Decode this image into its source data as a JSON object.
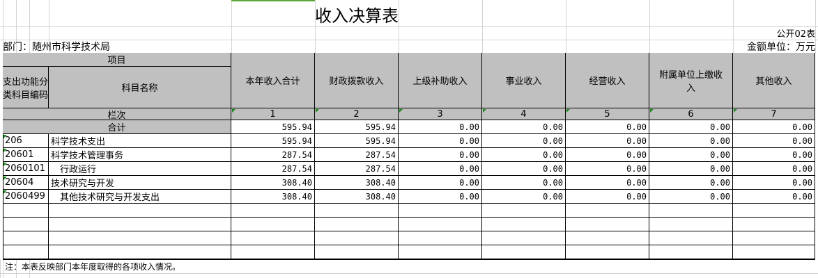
{
  "title": "收入决算表",
  "form_no": "公开02表",
  "department": "部门：随州市科学技术局",
  "unit": "金额单位：万元",
  "header": {
    "item": "项目",
    "code": "支出功能分类科目编码",
    "name": "科目名称",
    "row_label": "栏次",
    "total_label": "合计",
    "columns": [
      "本年收入合计",
      "财政拨款收入",
      "上级补助收入",
      "事业收入",
      "经营收入",
      "附属单位上缴收入",
      "其他收入"
    ],
    "column_numbers": [
      "1",
      "2",
      "3",
      "4",
      "5",
      "6",
      "7"
    ]
  },
  "total": [
    "595.94",
    "595.94",
    "0.00",
    "0.00",
    "0.00",
    "0.00",
    "0.00"
  ],
  "rows": [
    {
      "code": "206",
      "name": "科学技术支出",
      "values": [
        "595.94",
        "595.94",
        "0.00",
        "0.00",
        "0.00",
        "0.00",
        "0.00"
      ]
    },
    {
      "code": "20601",
      "name": "科学技术管理事务",
      "values": [
        "287.54",
        "287.54",
        "0.00",
        "0.00",
        "0.00",
        "0.00",
        "0.00"
      ]
    },
    {
      "code": "2060101",
      "name": "　行政运行",
      "values": [
        "287.54",
        "287.54",
        "0.00",
        "0.00",
        "0.00",
        "0.00",
        "0.00"
      ]
    },
    {
      "code": "20604",
      "name": "技术研究与开发",
      "values": [
        "308.40",
        "308.40",
        "0.00",
        "0.00",
        "0.00",
        "0.00",
        "0.00"
      ]
    },
    {
      "code": "2060499",
      "name": "　其他技术研究与开发支出",
      "values": [
        "308.40",
        "308.40",
        "0.00",
        "0.00",
        "0.00",
        "0.00",
        "0.00"
      ]
    }
  ],
  "note": "注：本表反映部门本年度取得的各项收入情况。"
}
